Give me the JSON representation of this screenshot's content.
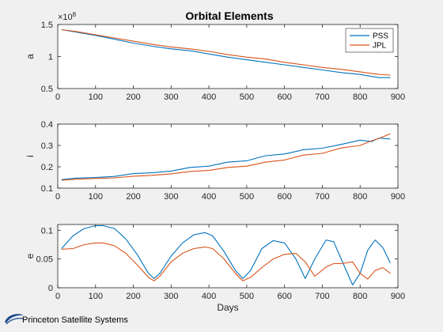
{
  "title": "Orbital Elements",
  "logo_text": "Princeton Satellite Systems",
  "colors": {
    "PSS": "#0072bd",
    "JPL": "#d95319"
  },
  "chart_data": [
    {
      "type": "line",
      "ylabel": "a",
      "xlabel": "",
      "exponent_label": "×10",
      "exponent_power": "8",
      "xlim": [
        0,
        900
      ],
      "ylim": [
        0.5,
        1.5
      ],
      "xticks": [
        0,
        100,
        200,
        300,
        400,
        500,
        600,
        700,
        800,
        900
      ],
      "yticks": [
        0.5,
        1,
        1.5
      ],
      "ytick_labels": [
        "0.5",
        "1",
        "1.5"
      ],
      "legend": [
        "PSS",
        "JPL"
      ],
      "legend_position": "top-right",
      "x": [
        10,
        50,
        100,
        150,
        200,
        250,
        300,
        350,
        400,
        450,
        500,
        550,
        600,
        650,
        700,
        750,
        800,
        850,
        880
      ],
      "series": [
        {
          "name": "PSS",
          "values": [
            1.42,
            1.38,
            1.33,
            1.27,
            1.21,
            1.16,
            1.12,
            1.09,
            1.04,
            0.99,
            0.95,
            0.91,
            0.87,
            0.83,
            0.79,
            0.75,
            0.72,
            0.67,
            0.67
          ]
        },
        {
          "name": "JPL",
          "values": [
            1.42,
            1.39,
            1.34,
            1.29,
            1.24,
            1.19,
            1.15,
            1.12,
            1.08,
            1.03,
            0.99,
            0.96,
            0.91,
            0.87,
            0.83,
            0.8,
            0.76,
            0.72,
            0.71
          ]
        }
      ]
    },
    {
      "type": "line",
      "ylabel": "i",
      "xlabel": "",
      "xlim": [
        0,
        900
      ],
      "ylim": [
        0.1,
        0.4
      ],
      "xticks": [
        0,
        100,
        200,
        300,
        400,
        500,
        600,
        700,
        800,
        900
      ],
      "yticks": [
        0.1,
        0.2,
        0.3,
        0.4
      ],
      "ytick_labels": [
        "0.1",
        "0.2",
        "0.3",
        "0.4"
      ],
      "x": [
        10,
        50,
        100,
        150,
        200,
        250,
        300,
        350,
        400,
        450,
        500,
        550,
        600,
        650,
        700,
        750,
        800,
        830,
        850,
        880
      ],
      "series": [
        {
          "name": "PSS",
          "values": [
            0.14,
            0.147,
            0.15,
            0.155,
            0.168,
            0.172,
            0.18,
            0.197,
            0.203,
            0.222,
            0.228,
            0.252,
            0.26,
            0.28,
            0.287,
            0.305,
            0.325,
            0.318,
            0.335,
            0.33
          ]
        },
        {
          "name": "JPL",
          "values": [
            0.137,
            0.142,
            0.145,
            0.148,
            0.156,
            0.16,
            0.167,
            0.178,
            0.183,
            0.197,
            0.203,
            0.222,
            0.232,
            0.255,
            0.263,
            0.288,
            0.3,
            0.322,
            0.333,
            0.355
          ]
        }
      ]
    },
    {
      "type": "line",
      "ylabel": "e",
      "xlabel": "Days",
      "xlim": [
        0,
        900
      ],
      "ylim": [
        0,
        0.11
      ],
      "xticks": [
        0,
        100,
        200,
        300,
        400,
        500,
        600,
        700,
        800,
        900
      ],
      "yticks": [
        0,
        0.05,
        0.1
      ],
      "ytick_labels": [
        "0",
        "0.05",
        "0.1"
      ],
      "x": [
        10,
        40,
        70,
        100,
        120,
        150,
        180,
        210,
        240,
        255,
        270,
        300,
        330,
        360,
        390,
        410,
        440,
        470,
        490,
        510,
        540,
        570,
        600,
        630,
        655,
        680,
        710,
        730,
        750,
        780,
        800,
        820,
        840,
        860,
        880
      ],
      "series": [
        {
          "name": "PSS",
          "values": [
            0.068,
            0.09,
            0.103,
            0.108,
            0.108,
            0.103,
            0.085,
            0.058,
            0.025,
            0.016,
            0.025,
            0.055,
            0.078,
            0.092,
            0.096,
            0.09,
            0.063,
            0.03,
            0.016,
            0.03,
            0.068,
            0.082,
            0.078,
            0.05,
            0.016,
            0.05,
            0.083,
            0.08,
            0.05,
            0.005,
            0.025,
            0.065,
            0.083,
            0.07,
            0.043
          ]
        },
        {
          "name": "JPL",
          "values": [
            0.067,
            0.068,
            0.075,
            0.078,
            0.078,
            0.073,
            0.06,
            0.04,
            0.018,
            0.012,
            0.02,
            0.045,
            0.06,
            0.068,
            0.071,
            0.068,
            0.05,
            0.025,
            0.012,
            0.018,
            0.035,
            0.05,
            0.058,
            0.06,
            0.045,
            0.02,
            0.036,
            0.042,
            0.042,
            0.045,
            0.025,
            0.015,
            0.03,
            0.035,
            0.025
          ]
        }
      ]
    }
  ]
}
